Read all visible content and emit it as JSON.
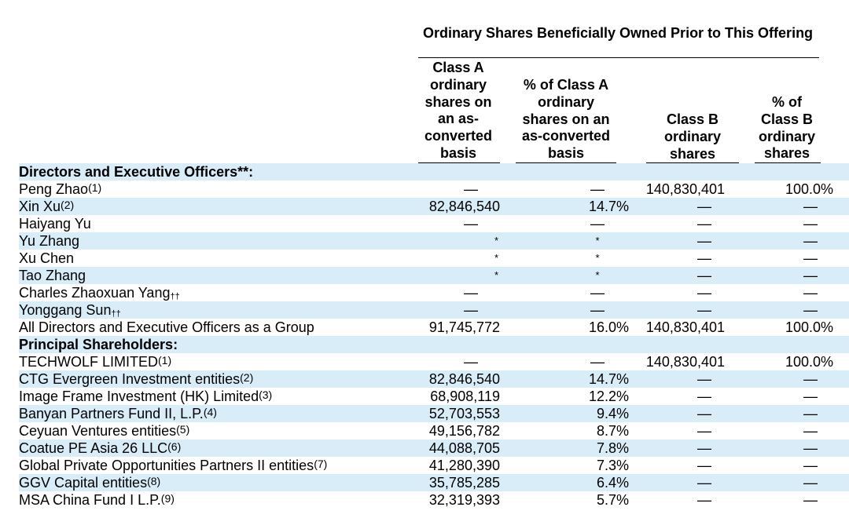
{
  "header": {
    "group_title": "Ordinary Shares Beneficially Owned Prior to This Offering",
    "columns": [
      "Class A\nordinary\nshares on\nan as-\nconverted\nbasis",
      "% of Class A\nordinary\nshares on an\nas-converted\nbasis",
      "Class B\nordinary\nshares",
      "% of\nClass B\nordinary\nshares"
    ]
  },
  "rows": [
    {
      "type": "section",
      "name": "Directors and Executive Officers**:",
      "shade": true
    },
    {
      "type": "row",
      "name": "Peng Zhao",
      "note": "(1)",
      "a": "—",
      "pa": "—",
      "b": "140,830,401",
      "pb": "100.0%",
      "shade": false
    },
    {
      "type": "row",
      "name": "Xin Xu",
      "note": "(2)",
      "a": "82,846,540",
      "pa": "14.7%",
      "b": "—",
      "pb": "—",
      "shade": true
    },
    {
      "type": "row",
      "name": "Haiyang Yu",
      "note": "",
      "a": "—",
      "pa": "—",
      "b": "—",
      "pb": "—",
      "shade": false
    },
    {
      "type": "row",
      "name": "Yu Zhang",
      "note": "",
      "a": "*",
      "pa": "*",
      "b": "—",
      "pb": "—",
      "shade": true
    },
    {
      "type": "row",
      "name": "Xu Chen",
      "note": "",
      "a": "*",
      "pa": "*",
      "b": "—",
      "pb": "—",
      "shade": false
    },
    {
      "type": "row",
      "name": "Tao Zhang",
      "note": "",
      "a": "*",
      "pa": "*",
      "b": "—",
      "pb": "—",
      "shade": true
    },
    {
      "type": "row",
      "name": "Charles Zhaoxuan Yang",
      "dagger": "††",
      "note": "",
      "a": "—",
      "pa": "—",
      "b": "—",
      "pb": "—",
      "shade": false
    },
    {
      "type": "row",
      "name": "Yonggang Sun",
      "dagger": "††",
      "note": "",
      "a": "—",
      "pa": "—",
      "b": "—",
      "pb": "—",
      "shade": true
    },
    {
      "type": "row",
      "name": "All Directors and Executive Officers as a Group",
      "note": "",
      "a": "91,745,772",
      "pa": "16.0%",
      "b": "140,830,401",
      "pb": "100.0%",
      "shade": false
    },
    {
      "type": "section",
      "name": "Principal Shareholders:",
      "shade": true
    },
    {
      "type": "row",
      "name": "TECHWOLF LIMITED",
      "note": "(1)",
      "a": "—",
      "pa": "—",
      "b": "140,830,401",
      "pb": "100.0%",
      "shade": false
    },
    {
      "type": "row",
      "name": "CTG Evergreen Investment entities",
      "note": "(2)",
      "a": "82,846,540",
      "pa": "14.7%",
      "b": "—",
      "pb": "—",
      "shade": true
    },
    {
      "type": "row",
      "name": "Image Frame Investment (HK) Limited",
      "note": "(3)",
      "a": "68,908,119",
      "pa": "12.2%",
      "b": "—",
      "pb": "—",
      "shade": false
    },
    {
      "type": "row",
      "name": "Banyan Partners Fund II, L.P.",
      "note": "(4)",
      "a": "52,703,553",
      "pa": "9.4%",
      "b": "—",
      "pb": "—",
      "shade": true
    },
    {
      "type": "row",
      "name": "Ceyuan Ventures entities",
      "note": "(5)",
      "a": "49,156,782",
      "pa": "8.7%",
      "b": "—",
      "pb": "—",
      "shade": false
    },
    {
      "type": "row",
      "name": "Coatue PE Asia 26 LLC",
      "note": "(6)",
      "a": "44,088,705",
      "pa": "7.8%",
      "b": "—",
      "pb": "—",
      "shade": true
    },
    {
      "type": "row",
      "name": "Global Private Opportunities Partners II entities",
      "note": "(7)",
      "a": "41,280,390",
      "pa": "7.3%",
      "b": "—",
      "pb": "—",
      "shade": false
    },
    {
      "type": "row",
      "name": "GGV Capital entities",
      "note": "(8)",
      "a": "35,785,285",
      "pa": "6.4%",
      "b": "—",
      "pb": "—",
      "shade": true
    },
    {
      "type": "row",
      "name": "MSA China Fund I L.P.",
      "note": "(9)",
      "a": "32,319,393",
      "pa": "5.7%",
      "b": "—",
      "pb": "—",
      "shade": false
    }
  ]
}
